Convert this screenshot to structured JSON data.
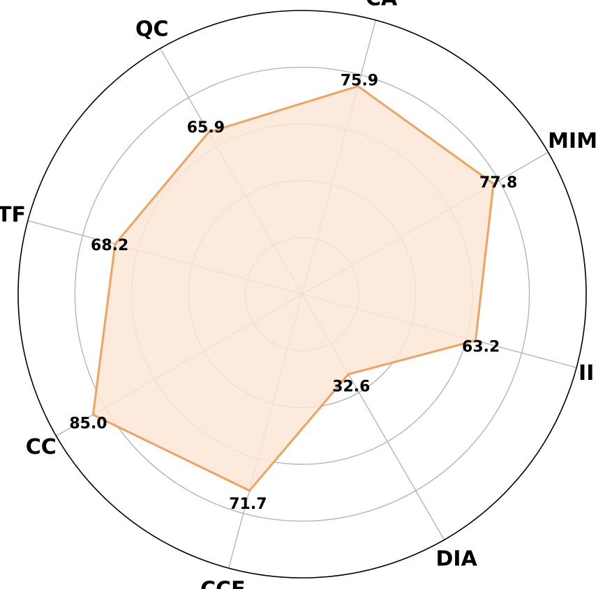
{
  "chart_data": {
    "type": "radar",
    "categories": [
      "CA",
      "MIM",
      "II",
      "DIA",
      "CCF",
      "CC",
      "ITF",
      "QC"
    ],
    "values": [
      75.9,
      77.8,
      63.2,
      32.6,
      71.7,
      85.0,
      68.2,
      65.9
    ],
    "value_labels": [
      "75.9",
      "77.8",
      "63.2",
      "32.6",
      "71.7",
      "85.0",
      "68.2",
      "65.9"
    ],
    "rlim": [
      0,
      100
    ],
    "grid_rings": [
      20,
      40,
      60,
      80
    ],
    "grid": true,
    "colors": {
      "line": "#f0a35e",
      "fill": "#fbe6d6",
      "grid": "#b0b0b0",
      "frame": "#000000"
    }
  }
}
